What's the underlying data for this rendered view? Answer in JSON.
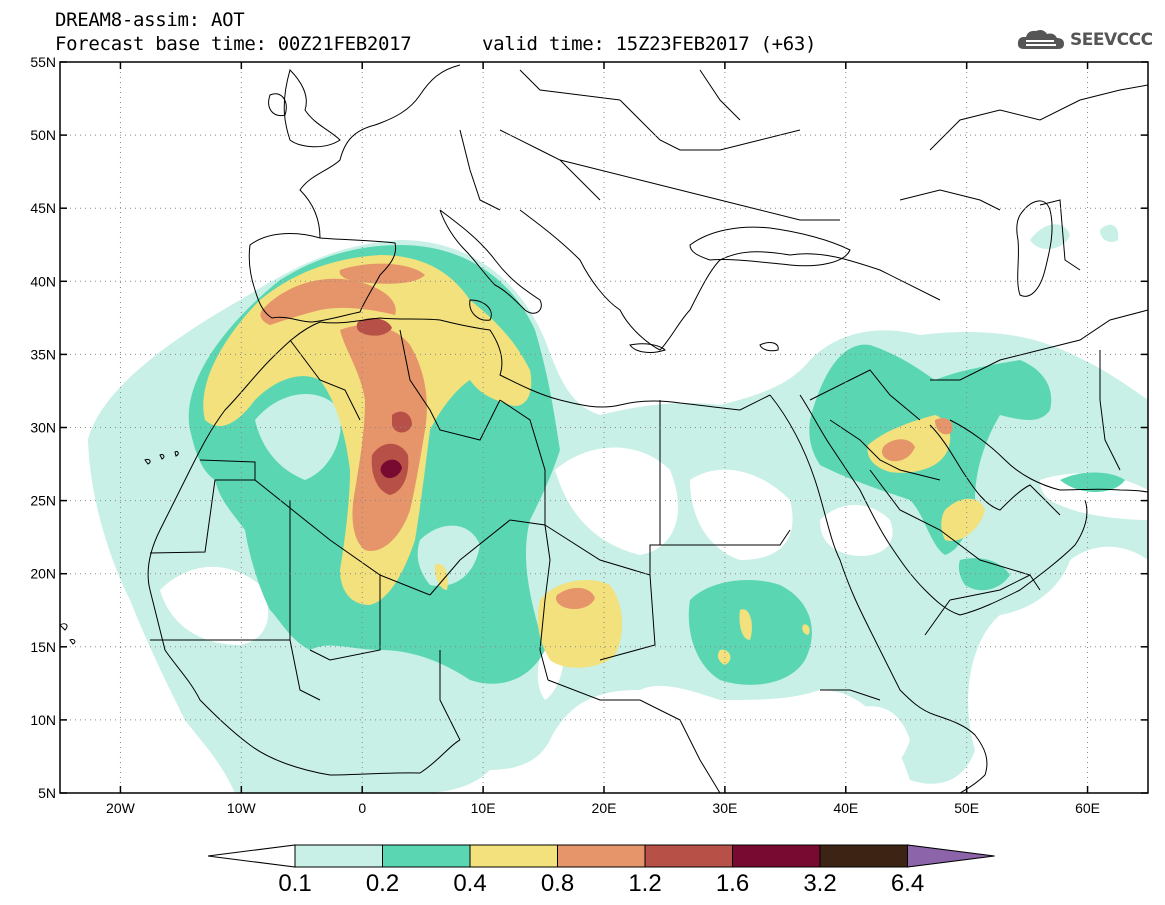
{
  "header": {
    "title_line1": "DREAM8-assim: AOT",
    "title_line2": "Forecast base time: 00Z21FEB2017",
    "valid_time": "valid time: 15Z23FEB2017 (+63)",
    "logo_text": "SEEVCCC"
  },
  "map": {
    "lon_range": [
      -25,
      65
    ],
    "lat_range": [
      5,
      55
    ],
    "y_ticks": [
      {
        "lat": 55,
        "label": "55N"
      },
      {
        "lat": 50,
        "label": "50N"
      },
      {
        "lat": 45,
        "label": "45N"
      },
      {
        "lat": 40,
        "label": "40N"
      },
      {
        "lat": 35,
        "label": "35N"
      },
      {
        "lat": 30,
        "label": "30N"
      },
      {
        "lat": 25,
        "label": "25N"
      },
      {
        "lat": 20,
        "label": "20N"
      },
      {
        "lat": 15,
        "label": "15N"
      },
      {
        "lat": 10,
        "label": "10N"
      },
      {
        "lat": 5,
        "label": "5N"
      }
    ],
    "x_ticks": [
      {
        "lon": -20,
        "label": "20W"
      },
      {
        "lon": -10,
        "label": "10W"
      },
      {
        "lon": 0,
        "label": "0"
      },
      {
        "lon": 10,
        "label": "10E"
      },
      {
        "lon": 20,
        "label": "20E"
      },
      {
        "lon": 30,
        "label": "30E"
      },
      {
        "lon": 40,
        "label": "40E"
      },
      {
        "lon": 50,
        "label": "50E"
      },
      {
        "lon": 60,
        "label": "60E"
      }
    ],
    "grid": "dotted"
  },
  "colorbar": {
    "labels": [
      "0.1",
      "0.2",
      "0.4",
      "0.8",
      "1.2",
      "1.6",
      "3.2",
      "6.4"
    ],
    "colors": {
      "under": "#ffffff",
      "c1": "#c8f0e6",
      "c2": "#5ad7b2",
      "c3": "#f2e17c",
      "c4": "#e6946a",
      "c5": "#b75046",
      "c6": "#780a32",
      "c7": "#3c2314",
      "over": "#8c64aa"
    }
  }
}
